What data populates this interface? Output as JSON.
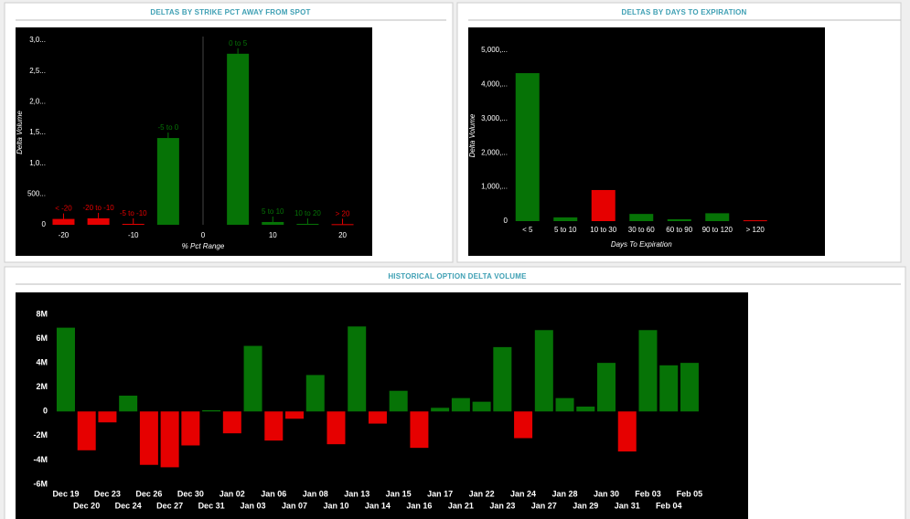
{
  "chart_data": [
    {
      "type": "bar",
      "title": "DELTAS BY STRIKE PCT AWAY FROM SPOT",
      "x_label": "% Pct Range",
      "y_label": "Delta Volume",
      "categories": [
        "< -20",
        "-20 to -10",
        "-5 to -10",
        "-5 to 0",
        "0 to 5",
        "5 to 10",
        "10 to 20",
        "> 20"
      ],
      "x": [
        -20,
        -15,
        -10,
        -5,
        5,
        10,
        15,
        20
      ],
      "values": [
        95,
        105,
        15,
        1410,
        2780,
        45,
        15,
        10
      ],
      "colors": [
        "#e60000",
        "#e60000",
        "#e60000",
        "#067306",
        "#067306",
        "#067306",
        "#067306",
        "#e60000"
      ],
      "data_labels": true,
      "zero_line": true,
      "xlim": [
        -22.5,
        22.5
      ],
      "xticks": [
        -20,
        -10,
        0,
        10,
        20
      ],
      "ylim": [
        0,
        3000
      ],
      "yticks": [
        0,
        {
          "value": 500,
          "label": "500..."
        },
        {
          "value": 1000,
          "label": "1,0..."
        },
        {
          "value": 1500,
          "label": "1,5..."
        },
        {
          "value": 2000,
          "label": "2,0..."
        },
        {
          "value": 2500,
          "label": "2,5..."
        },
        {
          "value": 3000,
          "label": "3,0..."
        }
      ]
    },
    {
      "type": "bar",
      "title": "DELTAS BY DAYS TO EXPIRATION",
      "x_label": "Days To Expiration",
      "y_label": "Delta Volume",
      "categories": [
        "< 5",
        "5 to 10",
        "10 to 30",
        "30 to 60",
        "60 to 90",
        "90 to 120",
        "> 120"
      ],
      "values": [
        4330,
        110,
        910,
        210,
        55,
        230,
        25
      ],
      "colors": [
        "#067306",
        "#067306",
        "#e60000",
        "#067306",
        "#067306",
        "#067306",
        "#e60000"
      ],
      "ylim": [
        0,
        5000
      ],
      "yticks": [
        0,
        {
          "value": 1000,
          "label": "1,000,..."
        },
        {
          "value": 2000,
          "label": "2,000,..."
        },
        {
          "value": 3000,
          "label": "3,000,..."
        },
        {
          "value": 4000,
          "label": "4,000,..."
        },
        {
          "value": 5000,
          "label": "5,000,..."
        }
      ]
    },
    {
      "type": "bar",
      "title": "HISTORICAL OPTION DELTA VOLUME",
      "categories": [
        "Dec 19",
        "Dec 20",
        "Dec 23",
        "Dec 24",
        "Dec 26",
        "Dec 27",
        "Dec 30",
        "Dec 31",
        "Jan 02",
        "Jan 03",
        "Jan 06",
        "Jan 07",
        "Jan 08",
        "Jan 10",
        "Jan 13",
        "Jan 14",
        "Jan 15",
        "Jan 16",
        "Jan 17",
        "Jan 21",
        "Jan 22",
        "Jan 23",
        "Jan 24",
        "Jan 27",
        "Jan 28",
        "Jan 29",
        "Jan 30",
        "Jan 31",
        "Feb 03",
        "Feb 04",
        "Feb 05"
      ],
      "values": [
        6900000,
        -3200000,
        -900000,
        1300000,
        -4400000,
        -4600000,
        -2800000,
        100000,
        -1800000,
        5400000,
        -2400000,
        -600000,
        3000000,
        -2700000,
        7000000,
        -1000000,
        1700000,
        -3000000,
        300000,
        1100000,
        800000,
        5300000,
        -2200000,
        6700000,
        1100000,
        400000,
        4000000,
        -3300000,
        6700000,
        3800000,
        4000000
      ],
      "positive_color": "#067306",
      "negative_color": "#e60000",
      "ylim": [
        -6000000,
        8000000
      ],
      "yticks": [
        {
          "value": -6000000,
          "label": "-6M"
        },
        {
          "value": -4000000,
          "label": "-4M"
        },
        {
          "value": -2000000,
          "label": "-2M"
        },
        0,
        {
          "value": 2000000,
          "label": "2M"
        },
        {
          "value": 4000000,
          "label": "4M"
        },
        {
          "value": 6000000,
          "label": "6M"
        },
        {
          "value": 8000000,
          "label": "8M"
        }
      ]
    }
  ]
}
